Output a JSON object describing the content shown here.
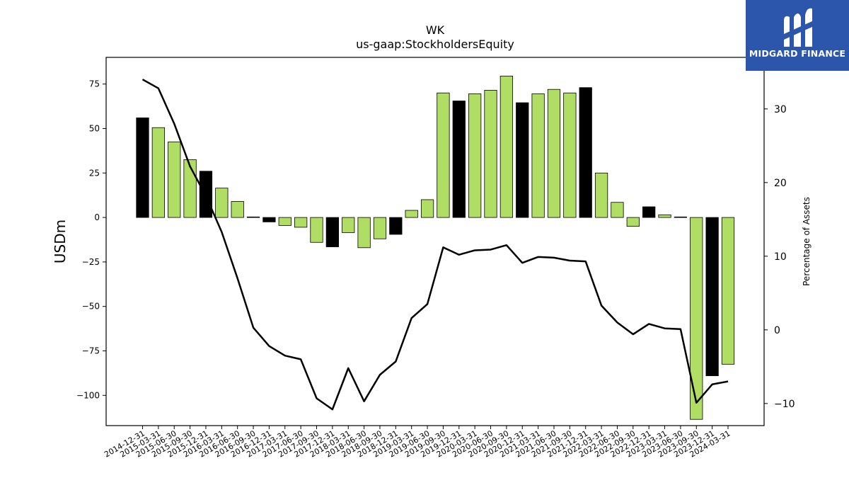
{
  "brand": {
    "name": "MIDGARD FINANCE",
    "colors": {
      "background": "#2b56ab",
      "text": "#ffffff"
    }
  },
  "chart_data": {
    "type": "bar",
    "title": "WK",
    "subtitle": "us-gaap:StockholdersEquity",
    "ylabel": "USDm",
    "y2label": "Percentage of Assets",
    "ylim": [
      -117,
      90
    ],
    "y2lim": [
      -13,
      37
    ],
    "yticks": [
      75,
      50,
      25,
      0,
      -25,
      -50,
      -75,
      -100
    ],
    "y2ticks": [
      30,
      20,
      10,
      0,
      -10
    ],
    "ytick_labels": [
      "75",
      "50",
      "25",
      "0",
      "−25",
      "−50",
      "−75",
      "−100"
    ],
    "y2tick_labels": [
      "30",
      "20",
      "10",
      "0",
      "−10"
    ],
    "grid": false,
    "colors": {
      "bar_default": "#b0dd64",
      "bar_q4": "#000000",
      "line": "#000000"
    },
    "categories": [
      "2014-12-31",
      "2015-03-31",
      "2015-06-30",
      "2015-09-30",
      "2015-12-31",
      "2016-03-31",
      "2016-06-30",
      "2016-09-30",
      "2016-12-31",
      "2017-03-31",
      "2017-06-30",
      "2017-09-30",
      "2017-12-31",
      "2018-03-31",
      "2018-06-30",
      "2018-09-30",
      "2018-12-31",
      "2019-03-31",
      "2019-06-30",
      "2019-09-30",
      "2019-12-31",
      "2020-03-31",
      "2020-06-30",
      "2020-09-30",
      "2020-12-31",
      "2021-03-31",
      "2021-06-30",
      "2021-09-30",
      "2021-12-31",
      "2022-03-31",
      "2022-06-30",
      "2022-09-30",
      "2022-12-31",
      "2023-03-31",
      "2023-06-30",
      "2023-09-30",
      "2023-12-31",
      "2024-03-31"
    ],
    "series": [
      {
        "kind": "bar",
        "axis": "left",
        "values": [
          56,
          50.5,
          42.5,
          32.5,
          26,
          16.5,
          9,
          0.3,
          -2.5,
          -4.5,
          -5.5,
          -14,
          -16.5,
          -8.5,
          -17,
          -12,
          -9.5,
          4,
          10,
          70,
          65.5,
          69.5,
          71.5,
          79.5,
          64.5,
          69.5,
          72,
          70,
          73,
          25,
          8.5,
          -5,
          6,
          1.5,
          0.3,
          -113.5,
          -89,
          -82.5
        ]
      },
      {
        "kind": "line",
        "axis": "right",
        "values": [
          34,
          32.8,
          28,
          22.2,
          18.2,
          13.3,
          7,
          0.3,
          -2.2,
          -3.5,
          -4,
          -9.3,
          -10.8,
          -5.2,
          -9.7,
          -6.1,
          -4.3,
          1.6,
          3.5,
          11.2,
          10.2,
          10.8,
          10.9,
          11.5,
          9.1,
          9.9,
          9.8,
          9.4,
          9.3,
          3.3,
          1,
          -0.6,
          0.8,
          0.2,
          0.1,
          -9.9,
          -7.4,
          -7
        ]
      }
    ]
  }
}
